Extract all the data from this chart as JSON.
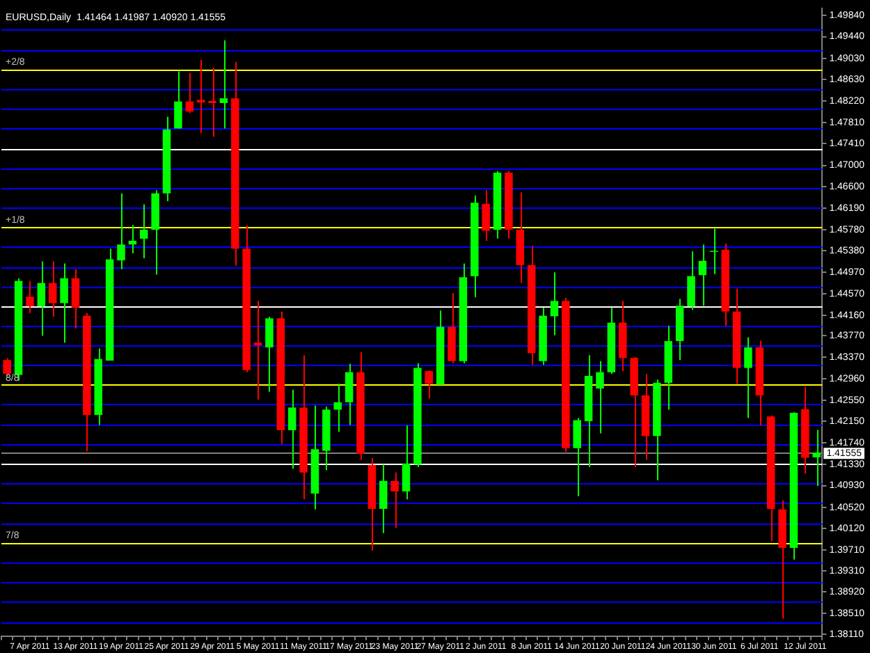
{
  "chart_data": {
    "type": "candlestick",
    "title": "EURUSD,Daily  1.41464 1.41987 1.40920 1.41555",
    "categories": [
      null,
      null,
      "7 Apr 2011",
      null,
      null,
      null,
      "13 Apr 2011",
      null,
      null,
      null,
      "19 Apr 2011",
      null,
      null,
      null,
      "25 Apr 2011",
      null,
      null,
      null,
      "29 Apr 2011",
      null,
      null,
      null,
      "5 May 2011",
      null,
      null,
      null,
      "11 May 2011",
      null,
      null,
      null,
      "17 May 2011",
      null,
      null,
      null,
      "23 May 2011",
      null,
      null,
      null,
      "27 May 2011",
      null,
      null,
      null,
      "2 Jun 2011",
      null,
      null,
      null,
      "8 Jun 2011",
      null,
      null,
      null,
      "14 Jun 2011",
      null,
      null,
      null,
      "20 Jun 2011",
      null,
      null,
      null,
      "24 Jun 2011",
      null,
      null,
      null,
      "30 Jun 2011",
      null,
      null,
      null,
      "6 Jul 2011",
      null,
      null,
      null,
      "12 Jul 2011",
      null
    ],
    "ohlc": [
      [
        1.4331,
        1.4335,
        1.4301,
        1.4305
      ],
      [
        1.4303,
        1.4486,
        1.4292,
        1.4481
      ],
      [
        1.4451,
        1.4481,
        1.442,
        1.4433
      ],
      [
        1.4433,
        1.4518,
        1.4377,
        1.4477
      ],
      [
        1.4477,
        1.4518,
        1.4413,
        1.4439
      ],
      [
        1.4439,
        1.4514,
        1.4364,
        1.4486
      ],
      [
        1.4486,
        1.4503,
        1.4391,
        1.443
      ],
      [
        1.4415,
        1.442,
        1.4158,
        1.4227
      ],
      [
        1.4227,
        1.4353,
        1.4208,
        1.4333
      ],
      [
        1.433,
        1.4542,
        1.433,
        1.4522
      ],
      [
        1.452,
        1.4647,
        1.4503,
        1.455
      ],
      [
        1.455,
        1.4587,
        1.4533,
        1.4557
      ],
      [
        1.4561,
        1.4626,
        1.4524,
        1.4578
      ],
      [
        1.4578,
        1.4653,
        1.4493,
        1.4647
      ],
      [
        1.4647,
        1.4792,
        1.4632,
        1.4768
      ],
      [
        1.477,
        1.4878,
        1.477,
        1.4821
      ],
      [
        1.4821,
        1.4875,
        1.4799,
        1.4802
      ],
      [
        1.4824,
        1.49,
        1.4761,
        1.4819
      ],
      [
        1.4822,
        1.4885,
        1.4754,
        1.4818
      ],
      [
        1.4818,
        1.4937,
        1.477,
        1.4827
      ],
      [
        1.4827,
        1.4896,
        1.451,
        1.4542
      ],
      [
        1.4542,
        1.4586,
        1.4308,
        1.4312
      ],
      [
        1.4364,
        1.4443,
        1.4256,
        1.4359
      ],
      [
        1.4355,
        1.4413,
        1.4271,
        1.441
      ],
      [
        1.441,
        1.4423,
        1.4172,
        1.4198
      ],
      [
        1.4198,
        1.4275,
        1.4125,
        1.4241
      ],
      [
        1.4241,
        1.434,
        1.4067,
        1.4118
      ],
      [
        1.4078,
        1.4245,
        1.4048,
        1.4162
      ],
      [
        1.4159,
        1.4243,
        1.4122,
        1.4237
      ],
      [
        1.4237,
        1.4286,
        1.4195,
        1.4251
      ],
      [
        1.4251,
        1.4324,
        1.4208,
        1.4308
      ],
      [
        1.4308,
        1.4346,
        1.4142,
        1.4153
      ],
      [
        1.4132,
        1.4145,
        1.397,
        1.4049
      ],
      [
        1.4049,
        1.4133,
        1.4003,
        1.4102
      ],
      [
        1.4102,
        1.4118,
        1.4013,
        1.4082
      ],
      [
        1.4082,
        1.4207,
        1.4067,
        1.4135
      ],
      [
        1.4133,
        1.4325,
        1.4128,
        1.4316
      ],
      [
        1.431,
        1.4311,
        1.4258,
        1.4286
      ],
      [
        1.4284,
        1.4425,
        1.4284,
        1.4394
      ],
      [
        1.4394,
        1.4458,
        1.4325,
        1.4329
      ],
      [
        1.4329,
        1.4514,
        1.4325,
        1.4488
      ],
      [
        1.449,
        1.4643,
        1.445,
        1.4629
      ],
      [
        1.4627,
        1.4653,
        1.4557,
        1.4576
      ],
      [
        1.4578,
        1.4689,
        1.4561,
        1.4686
      ],
      [
        1.4686,
        1.4689,
        1.4561,
        1.4578
      ],
      [
        1.4578,
        1.4649,
        1.4477,
        1.4511
      ],
      [
        1.4511,
        1.4548,
        1.4322,
        1.4344
      ],
      [
        1.4329,
        1.443,
        1.4322,
        1.4415
      ],
      [
        1.4414,
        1.4497,
        1.4378,
        1.4443
      ],
      [
        1.4443,
        1.4449,
        1.4157,
        1.4164
      ],
      [
        1.4164,
        1.4221,
        1.4073,
        1.4217
      ],
      [
        1.4215,
        1.434,
        1.4128,
        1.4301
      ],
      [
        1.4277,
        1.4329,
        1.4192,
        1.4308
      ],
      [
        1.4308,
        1.443,
        1.4305,
        1.4402
      ],
      [
        1.4402,
        1.4443,
        1.431,
        1.4335
      ],
      [
        1.4335,
        1.4337,
        1.4128,
        1.4264
      ],
      [
        1.4264,
        1.4305,
        1.4142,
        1.4187
      ],
      [
        1.4187,
        1.4294,
        1.4103,
        1.4288
      ],
      [
        1.4288,
        1.4396,
        1.4237,
        1.4367
      ],
      [
        1.4367,
        1.4447,
        1.4331,
        1.4434
      ],
      [
        1.4433,
        1.4537,
        1.4426,
        1.449
      ],
      [
        1.4492,
        1.455,
        1.4434,
        1.4519
      ],
      [
        1.4536,
        1.458,
        1.4494,
        1.4538
      ],
      [
        1.454,
        1.4552,
        1.4396,
        1.4423
      ],
      [
        1.4423,
        1.4466,
        1.4286,
        1.4316
      ],
      [
        1.4316,
        1.4374,
        1.4221,
        1.4355
      ],
      [
        1.4355,
        1.4368,
        1.4207,
        1.4264
      ],
      [
        1.4224,
        1.4226,
        1.3988,
        1.4049
      ],
      [
        1.4048,
        1.4065,
        1.3841,
        1.3975
      ],
      [
        1.3975,
        1.4232,
        1.3953,
        1.4231
      ],
      [
        1.4238,
        1.428,
        1.4116,
        1.4146
      ],
      [
        1.41464,
        1.41987,
        1.4092,
        1.41555
      ]
    ],
    "colors": [
      "#ff0000",
      "#00ff00",
      "#ff0000",
      "#00ff00",
      "#ff0000",
      "#00ff00",
      "#ff0000",
      "#ff0000",
      "#00ff00",
      "#00ff00",
      "#00ff00",
      "#00ff00",
      "#00ff00",
      "#00ff00",
      "#00ff00",
      "#00ff00",
      "#ff0000",
      "#ff0000",
      "#ff0000",
      "#00ff00",
      "#ff0000",
      "#ff0000",
      "#ff0000",
      "#00ff00",
      "#ff0000",
      "#00ff00",
      "#ff0000",
      "#00ff00",
      "#00ff00",
      "#00ff00",
      "#00ff00",
      "#ff0000",
      "#ff0000",
      "#00ff00",
      "#ff0000",
      "#00ff00",
      "#00ff00",
      "#ff0000",
      "#00ff00",
      "#ff0000",
      "#00ff00",
      "#00ff00",
      "#ff0000",
      "#00ff00",
      "#ff0000",
      "#ff0000",
      "#ff0000",
      "#00ff00",
      "#00ff00",
      "#ff0000",
      "#00ff00",
      "#00ff00",
      "#00ff00",
      "#00ff00",
      "#ff0000",
      "#ff0000",
      "#ff0000",
      "#00ff00",
      "#00ff00",
      "#00ff00",
      "#00ff00",
      "#00ff00",
      "#00ff00",
      "#ff0000",
      "#ff0000",
      "#00ff00",
      "#ff0000",
      "#ff0000",
      "#ff0000",
      "#00ff00",
      "#ff0000",
      "#00ff00"
    ],
    "ylim": [
      1.3808,
      1.4997
    ],
    "yticks": [
      {
        "value": 1.4984,
        "label": "1.49840"
      },
      {
        "value": 1.4944,
        "label": "1.49440"
      },
      {
        "value": 1.4903,
        "label": "1.49030"
      },
      {
        "value": 1.4863,
        "label": "1.48630"
      },
      {
        "value": 1.4822,
        "label": "1.48220"
      },
      {
        "value": 1.4781,
        "label": "1.47810"
      },
      {
        "value": 1.4741,
        "label": "1.47410"
      },
      {
        "value": 1.47,
        "label": "1.47000"
      },
      {
        "value": 1.466,
        "label": "1.46600"
      },
      {
        "value": 1.4619,
        "label": "1.46190"
      },
      {
        "value": 1.4578,
        "label": "1.45780"
      },
      {
        "value": 1.4538,
        "label": "1.45380"
      },
      {
        "value": 1.4497,
        "label": "1.44970"
      },
      {
        "value": 1.4457,
        "label": "1.44570"
      },
      {
        "value": 1.4416,
        "label": "1.44160"
      },
      {
        "value": 1.4377,
        "label": "1.43770"
      },
      {
        "value": 1.4337,
        "label": "1.43370"
      },
      {
        "value": 1.4296,
        "label": "1.42960"
      },
      {
        "value": 1.4255,
        "label": "1.42550"
      },
      {
        "value": 1.4215,
        "label": "1.42150"
      },
      {
        "value": 1.4174,
        "label": "1.41740"
      },
      {
        "value": 1.4133,
        "label": "1.41330"
      },
      {
        "value": 1.4093,
        "label": "1.40930"
      },
      {
        "value": 1.4052,
        "label": "1.40520"
      },
      {
        "value": 1.4012,
        "label": "1.40120"
      },
      {
        "value": 1.3971,
        "label": "1.39710"
      },
      {
        "value": 1.3931,
        "label": "1.39310"
      },
      {
        "value": 1.3892,
        "label": "1.38920"
      },
      {
        "value": 1.3851,
        "label": "1.38510"
      },
      {
        "value": 1.3811,
        "label": "1.38110"
      }
    ],
    "ref_lines": [
      {
        "axis": "y",
        "value": 1.4957,
        "color": "#0000ff"
      },
      {
        "axis": "y",
        "value": 1.4919,
        "color": "#0000ff"
      },
      {
        "axis": "y",
        "value": 1.4882,
        "color": "#ffff00"
      },
      {
        "axis": "y",
        "value": 1.4845,
        "color": "#0000ff"
      },
      {
        "axis": "y",
        "value": 1.4807,
        "color": "#0000ff"
      },
      {
        "axis": "y",
        "value": 1.477,
        "color": "#0000ff"
      },
      {
        "axis": "y",
        "value": 1.4732,
        "color": "#ffffff"
      },
      {
        "axis": "y",
        "value": 1.4695,
        "color": "#0000ff"
      },
      {
        "axis": "y",
        "value": 1.4658,
        "color": "#0000ff"
      },
      {
        "axis": "y",
        "value": 1.462,
        "color": "#0000ff"
      },
      {
        "axis": "y",
        "value": 1.4583,
        "color": "#ffff00"
      },
      {
        "axis": "y",
        "value": 1.4546,
        "color": "#0000ff"
      },
      {
        "axis": "y",
        "value": 1.4508,
        "color": "#0000ff"
      },
      {
        "axis": "y",
        "value": 1.4471,
        "color": "#0000ff"
      },
      {
        "axis": "y",
        "value": 1.4433,
        "color": "#ffffff"
      },
      {
        "axis": "y",
        "value": 1.4396,
        "color": "#0000ff"
      },
      {
        "axis": "y",
        "value": 1.4359,
        "color": "#0000ff"
      },
      {
        "axis": "y",
        "value": 1.4321,
        "color": "#0000ff"
      },
      {
        "axis": "y",
        "value": 1.4284,
        "color": "#ffff00"
      },
      {
        "axis": "y",
        "value": 1.4247,
        "color": "#0000ff"
      },
      {
        "axis": "y",
        "value": 1.4209,
        "color": "#0000ff"
      },
      {
        "axis": "y",
        "value": 1.4172,
        "color": "#0000ff"
      },
      {
        "axis": "y",
        "value": 1.41555,
        "color": "#808080",
        "label": "1.41555"
      },
      {
        "axis": "y",
        "value": 1.4134,
        "color": "#ffffff"
      },
      {
        "axis": "y",
        "value": 1.4097,
        "color": "#0000ff"
      },
      {
        "axis": "y",
        "value": 1.406,
        "color": "#0000ff"
      },
      {
        "axis": "y",
        "value": 1.4022,
        "color": "#0000ff"
      },
      {
        "axis": "y",
        "value": 1.3985,
        "color": "#ffff00"
      },
      {
        "axis": "y",
        "value": 1.3948,
        "color": "#0000ff"
      },
      {
        "axis": "y",
        "value": 1.391,
        "color": "#0000ff"
      },
      {
        "axis": "y",
        "value": 1.3873,
        "color": "#0000ff"
      },
      {
        "axis": "y",
        "value": 1.3835,
        "color": "#0000ff"
      }
    ],
    "annotations": [
      {
        "text": "+2/8",
        "y": 1.4882
      },
      {
        "text": "+1/8",
        "y": 1.4583
      },
      {
        "text": "8/8",
        "y": 1.4284
      },
      {
        "text": "7/8",
        "y": 1.3985
      }
    ],
    "grid": false,
    "legend": false
  }
}
